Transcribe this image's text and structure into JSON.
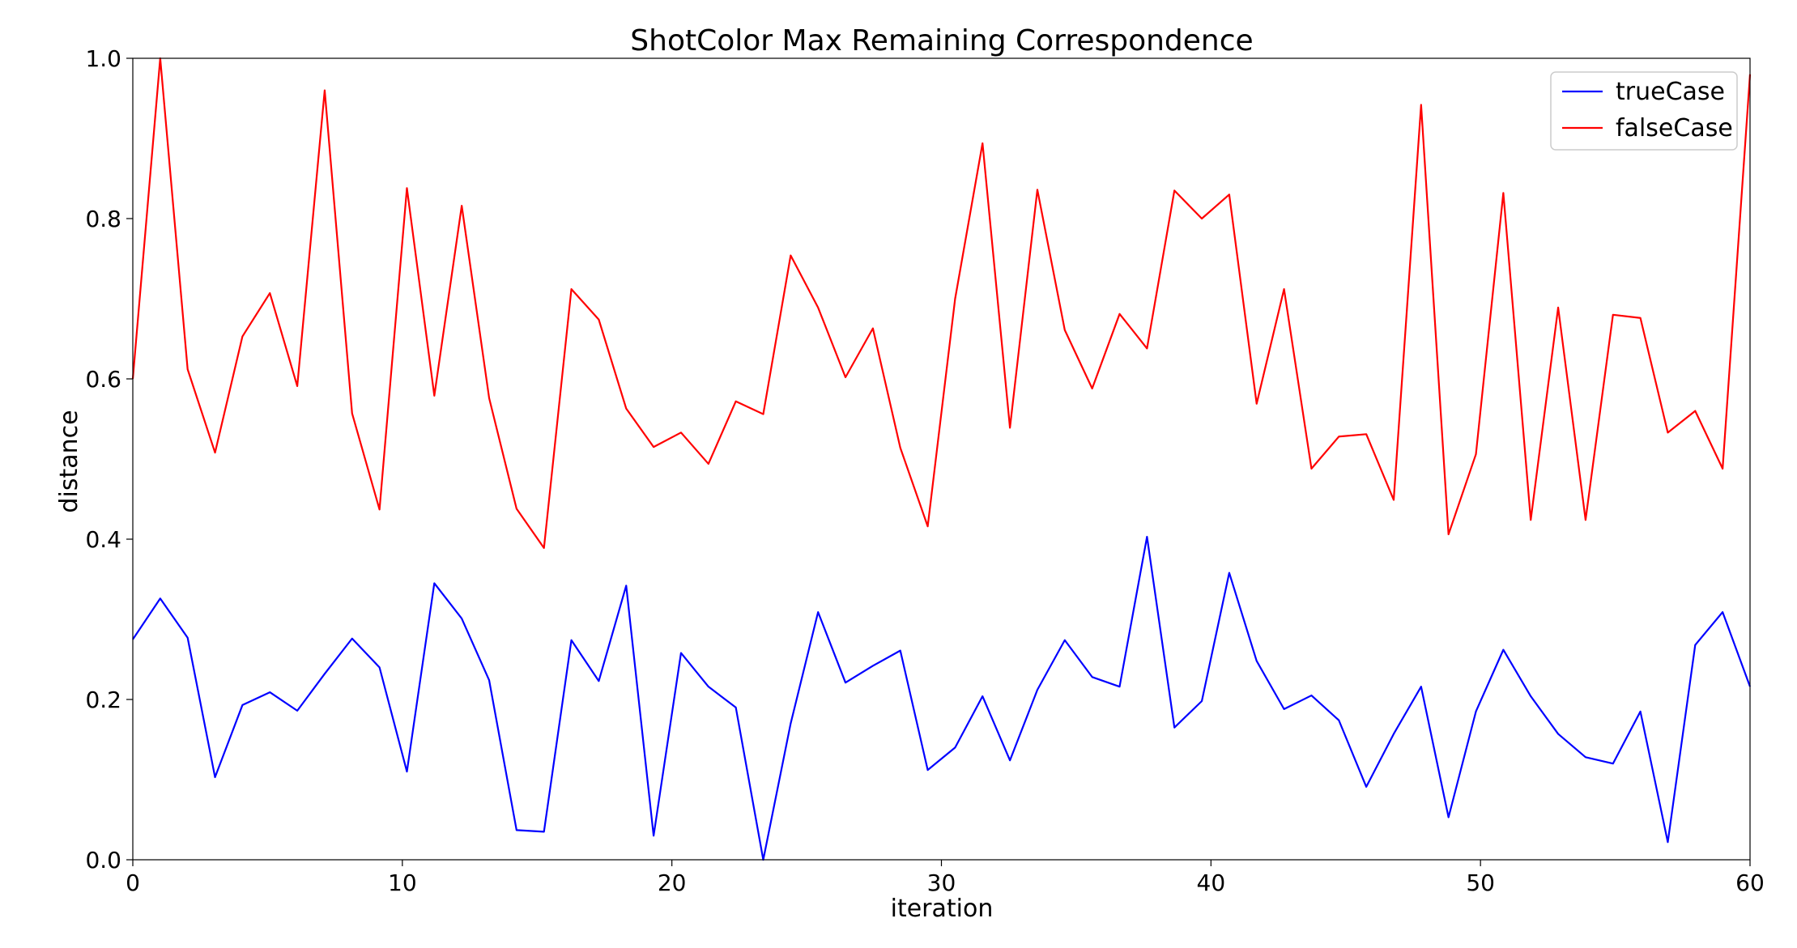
{
  "chart_data": {
    "type": "line",
    "title": "ShotColor Max Remaining Correspondence",
    "xlabel": "iteration",
    "ylabel": "distance",
    "xlim": [
      0,
      60
    ],
    "ylim": [
      0.0,
      1.0
    ],
    "xticks": [
      0,
      10,
      20,
      30,
      40,
      50,
      60
    ],
    "yticks": [
      0.0,
      0.2,
      0.4,
      0.6,
      0.8,
      1.0
    ],
    "xtick_labels": [
      "0",
      "10",
      "20",
      "30",
      "40",
      "50",
      "60"
    ],
    "ytick_labels": [
      "0.0",
      "0.2",
      "0.4",
      "0.6",
      "0.8",
      "1.0"
    ],
    "grid": false,
    "legend_position": "top-right",
    "x": [
      0,
      1.0169,
      2.0339,
      3.0508,
      4.0678,
      5.0847,
      6.1017,
      7.1186,
      8.1356,
      9.1525,
      10.1695,
      11.1864,
      12.2034,
      13.2203,
      14.2373,
      15.2542,
      16.2712,
      17.2881,
      18.3051,
      19.322,
      20.339,
      21.3559,
      22.3729,
      23.3898,
      24.4068,
      25.4237,
      26.4407,
      27.4576,
      28.4746,
      29.4915,
      30.5085,
      31.5254,
      32.5424,
      33.5593,
      34.5763,
      35.5932,
      36.6102,
      37.6271,
      38.6441,
      39.661,
      40.678,
      41.6949,
      42.7119,
      43.7288,
      44.7458,
      45.7627,
      46.7797,
      47.7966,
      48.8136,
      49.8305,
      50.8475,
      51.8644,
      52.8814,
      53.8983,
      54.9153,
      55.9322,
      56.9492,
      57.9661,
      58.9831,
      60
    ],
    "series": [
      {
        "name": "trueCase",
        "color": "#0000ff",
        "values": [
          0.275,
          0.326,
          0.277,
          0.103,
          0.193,
          0.209,
          0.186,
          0.232,
          0.276,
          0.24,
          0.11,
          0.345,
          0.301,
          0.224,
          0.037,
          0.035,
          0.274,
          0.223,
          0.342,
          0.03,
          0.258,
          0.216,
          0.19,
          0.0,
          0.17,
          0.309,
          0.221,
          0.242,
          0.261,
          0.112,
          0.14,
          0.204,
          0.124,
          0.212,
          0.274,
          0.228,
          0.216,
          0.403,
          0.165,
          0.198,
          0.358,
          0.248,
          0.188,
          0.205,
          0.174,
          0.091,
          0.157,
          0.216,
          0.053,
          0.185,
          0.262,
          0.204,
          0.157,
          0.128,
          0.12,
          0.185,
          0.022,
          0.268,
          0.309,
          0.216
        ]
      },
      {
        "name": "falseCase",
        "color": "#ff0000",
        "values": [
          0.6,
          1.0,
          0.612,
          0.508,
          0.653,
          0.707,
          0.591,
          0.96,
          0.557,
          0.437,
          0.838,
          0.579,
          0.816,
          0.576,
          0.438,
          0.389,
          0.712,
          0.674,
          0.563,
          0.515,
          0.533,
          0.494,
          0.572,
          0.556,
          0.754,
          0.689,
          0.602,
          0.663,
          0.514,
          0.416,
          0.7,
          0.894,
          0.539,
          0.836,
          0.661,
          0.588,
          0.681,
          0.638,
          0.835,
          0.8,
          0.83,
          0.569,
          0.712,
          0.488,
          0.528,
          0.531,
          0.449,
          0.942,
          0.406,
          0.506,
          0.832,
          0.424,
          0.689,
          0.424,
          0.68,
          0.676,
          0.533,
          0.56,
          0.488,
          0.98
        ]
      }
    ]
  }
}
